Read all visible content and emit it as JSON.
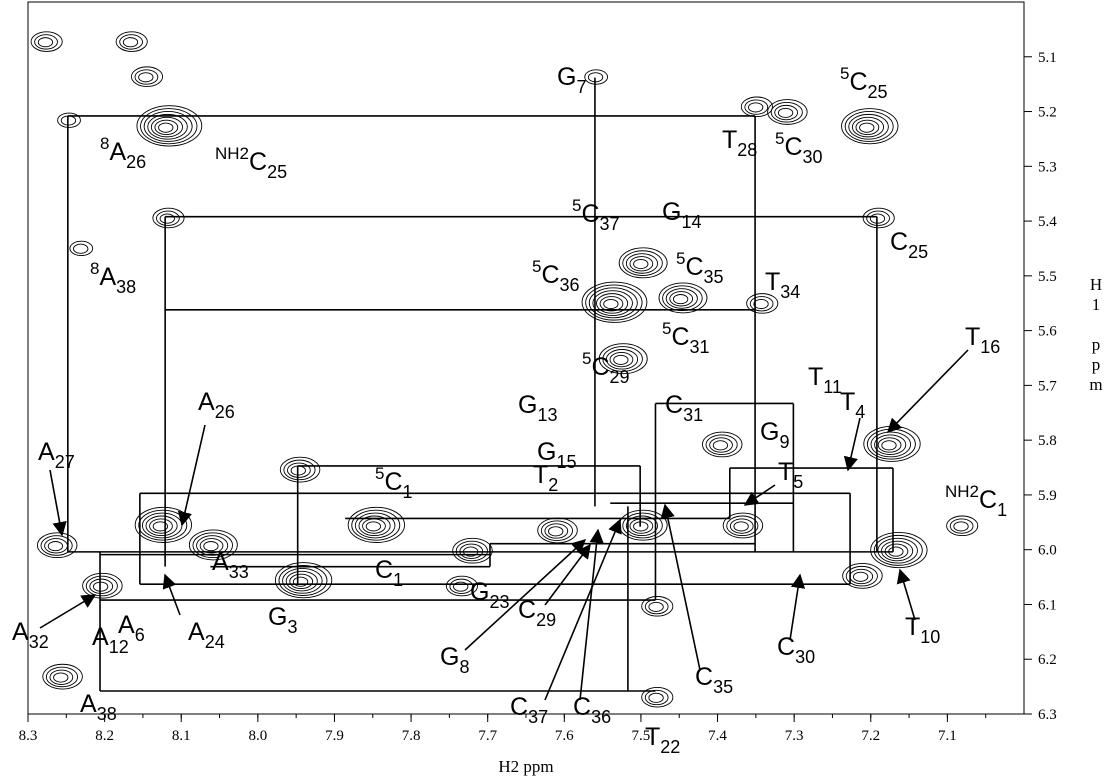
{
  "chart_data": {
    "type": "nmr",
    "xlabel": "H2 ppm",
    "ylabel": "H1 ppm",
    "xlim": [
      8.3,
      7.0
    ],
    "ylim": [
      5.0,
      6.3
    ],
    "xticks": [
      8.3,
      8.2,
      8.1,
      {
        "value": 8.0,
        "label": "8.0"
      },
      7.9,
      7.8,
      7.7,
      7.6,
      7.5,
      7.4,
      7.3,
      7.2,
      7.1
    ],
    "yticks": [
      5.1,
      5.2,
      5.3,
      5.4,
      5.5,
      5.6,
      5.7,
      5.8,
      5.9,
      {
        "value": 6.0,
        "label": "6.0"
      },
      6.1,
      6.2,
      6.3
    ],
    "color": "#000000",
    "peaks": [
      {
        "x": 8.278,
        "y": 5.074,
        "level": 3
      },
      {
        "x": 8.167,
        "y": 5.074,
        "level": 3
      },
      {
        "x": 8.147,
        "y": 5.138,
        "level": 3
      },
      {
        "x": 8.248,
        "y": 5.217,
        "level": 2
      },
      {
        "x": 8.121,
        "y": 5.23,
        "level": 7
      },
      {
        "x": 8.119,
        "y": 5.396,
        "level": 3
      },
      {
        "x": 8.232,
        "y": 5.451,
        "level": 2
      },
      {
        "x": 7.56,
        "y": 5.138,
        "level": 2
      },
      {
        "x": 7.312,
        "y": 5.203,
        "level": 4
      },
      {
        "x": 7.351,
        "y": 5.193,
        "level": 3
      },
      {
        "x": 7.206,
        "y": 5.23,
        "level": 6
      },
      {
        "x": 7.192,
        "y": 5.396,
        "level": 3
      },
      {
        "x": 7.501,
        "y": 5.479,
        "level": 5
      },
      {
        "x": 7.54,
        "y": 5.552,
        "level": 7
      },
      {
        "x": 7.449,
        "y": 5.543,
        "level": 5
      },
      {
        "x": 7.344,
        "y": 5.552,
        "level": 3
      },
      {
        "x": 7.527,
        "y": 5.654,
        "level": 5
      },
      {
        "x": 7.177,
        "y": 5.81,
        "level": 6
      },
      {
        "x": 7.948,
        "y": 5.856,
        "level": 4
      },
      {
        "x": 7.85,
        "y": 5.958,
        "level": 6
      },
      {
        "x": 7.723,
        "y": 6.004,
        "level": 4
      },
      {
        "x": 7.945,
        "y": 6.059,
        "level": 6
      },
      {
        "x": 8.128,
        "y": 5.958,
        "level": 6
      },
      {
        "x": 8.265,
        "y": 5.994,
        "level": 4
      },
      {
        "x": 8.206,
        "y": 6.068,
        "level": 4
      },
      {
        "x": 8.062,
        "y": 5.994,
        "level": 5
      },
      {
        "x": 7.214,
        "y": 6.05,
        "level": 4
      },
      {
        "x": 7.168,
        "y": 6.004,
        "level": 6
      },
      {
        "x": 7.083,
        "y": 5.958,
        "level": 3
      },
      {
        "x": 7.501,
        "y": 5.958,
        "level": 5
      },
      {
        "x": 7.37,
        "y": 5.958,
        "level": 4
      },
      {
        "x": 8.258,
        "y": 6.234,
        "level": 4
      },
      {
        "x": 7.481,
        "y": 6.271,
        "level": 3
      },
      {
        "x": 7.481,
        "y": 6.105,
        "level": 3
      },
      {
        "x": 7.736,
        "y": 6.068,
        "level": 3
      },
      {
        "x": 7.612,
        "y": 5.967,
        "level": 4
      },
      {
        "x": 7.397,
        "y": 5.81,
        "level": 4
      }
    ],
    "lines": [
      [
        8.248,
        5.208,
        7.351,
        5.208
      ],
      [
        8.121,
        5.392,
        7.192,
        5.392
      ],
      [
        8.121,
        5.562,
        7.351,
        5.562
      ],
      [
        7.481,
        5.733,
        7.301,
        5.733
      ],
      [
        7.384,
        5.851,
        7.171,
        5.851
      ],
      [
        7.948,
        5.847,
        7.501,
        5.847
      ],
      [
        8.154,
        5.897,
        7.227,
        5.897
      ],
      [
        7.54,
        5.915,
        7.301,
        5.915
      ],
      [
        7.886,
        5.943,
        7.384,
        5.943
      ],
      [
        7.697,
        5.989,
        7.351,
        5.989
      ],
      [
        8.248,
        6.004,
        7.171,
        6.004
      ],
      [
        8.206,
        6.009,
        7.697,
        6.009
      ],
      [
        8.062,
        6.031,
        7.697,
        6.031
      ],
      [
        8.154,
        6.063,
        7.227,
        6.063
      ],
      [
        8.206,
        6.092,
        7.481,
        6.092
      ],
      [
        8.206,
        6.258,
        7.481,
        6.258
      ],
      [
        8.248,
        5.208,
        8.248,
        6.004
      ],
      [
        8.121,
        5.392,
        8.121,
        6.031
      ],
      [
        8.206,
        6.004,
        8.206,
        6.258
      ],
      [
        8.154,
        5.897,
        8.154,
        6.063
      ],
      [
        7.948,
        5.847,
        7.948,
        6.063
      ],
      [
        7.56,
        5.138,
        7.56,
        5.921
      ],
      [
        7.517,
        5.921,
        7.517,
        6.258
      ],
      [
        7.481,
        5.733,
        7.481,
        6.092
      ],
      [
        7.501,
        5.847,
        7.501,
        5.958
      ],
      [
        7.351,
        5.208,
        7.351,
        6.004
      ],
      [
        7.227,
        5.897,
        7.227,
        6.063
      ],
      [
        7.192,
        5.392,
        7.192,
        6.004
      ],
      [
        7.171,
        5.851,
        7.171,
        6.004
      ],
      [
        7.384,
        5.851,
        7.384,
        5.943
      ],
      [
        7.301,
        5.733,
        7.301,
        6.004
      ],
      [
        7.697,
        5.989,
        7.697,
        6.031
      ]
    ],
    "labels": [
      {
        "text": "G",
        "sub": "7"
      },
      {
        "sup": "5",
        "text": "C",
        "sub": "25"
      },
      {
        "text": "T",
        "sub": "28"
      },
      {
        "sup": "5",
        "text": "C",
        "sub": "30"
      },
      {
        "sup": "8",
        "text": "A",
        "sub": "26"
      },
      {
        "sup": "NH2",
        "text": "C",
        "sub": "25"
      },
      {
        "sup": "5",
        "text": "C",
        "sub": "37"
      },
      {
        "text": "G",
        "sub": "14"
      },
      {
        "text": "C",
        "sub": "25"
      },
      {
        "sup": "8",
        "text": "A",
        "sub": "38"
      },
      {
        "sup": "5",
        "text": "C",
        "sub": "36"
      },
      {
        "sup": "5",
        "text": "C",
        "sub": "35"
      },
      {
        "text": "T",
        "sub": "34"
      },
      {
        "sup": "5",
        "text": "C",
        "sub": "31"
      },
      {
        "text": "T",
        "sub": "16"
      },
      {
        "text": "T",
        "sub": "11"
      },
      {
        "text": "T",
        "sub": "4"
      },
      {
        "sup": "5",
        "text": "C",
        "sub": "29"
      },
      {
        "text": "G",
        "sub": "13"
      },
      {
        "text": "C",
        "sub": "31"
      },
      {
        "text": "A",
        "sub": "26"
      },
      {
        "text": "G",
        "sub": "15"
      },
      {
        "text": "G",
        "sub": "9"
      },
      {
        "text": "A",
        "sub": "27"
      },
      {
        "text": "T",
        "sub": "2"
      },
      {
        "text": "T",
        "sub": "5"
      },
      {
        "sup": "5",
        "text": "C",
        "sub": "1"
      },
      {
        "sup": "NH2",
        "text": "C",
        "sub": "1"
      },
      {
        "text": "A",
        "sub": "33"
      },
      {
        "text": "C",
        "sub": "1"
      },
      {
        "text": "G",
        "sub": "23"
      },
      {
        "text": "A",
        "sub": "32"
      },
      {
        "text": "A",
        "sub": "12"
      },
      {
        "text": "A",
        "sub": "6"
      },
      {
        "text": "A",
        "sub": "24"
      },
      {
        "text": "G",
        "sub": "3"
      },
      {
        "text": "T",
        "sub": "10"
      },
      {
        "text": "C",
        "sub": "30"
      },
      {
        "text": "C",
        "sub": "29"
      },
      {
        "text": "G",
        "sub": "8"
      },
      {
        "text": "C",
        "sub": "35"
      },
      {
        "text": "C",
        "sub": "37"
      },
      {
        "text": "C",
        "sub": "36"
      },
      {
        "text": "A",
        "sub": "38"
      },
      {
        "text": "T",
        "sub": "22"
      }
    ]
  }
}
